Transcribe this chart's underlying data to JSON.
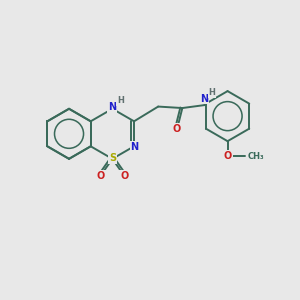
{
  "background_color": "#e8e8e8",
  "bond_color": "#3a6a5a",
  "N_color": "#2020cc",
  "S_color": "#aaaa00",
  "O_color": "#cc2020",
  "H_color": "#607070",
  "line_width": 1.4,
  "figsize": [
    3.0,
    3.0
  ],
  "dpi": 100,
  "xlim": [
    0,
    10
  ],
  "ylim": [
    0,
    10
  ]
}
